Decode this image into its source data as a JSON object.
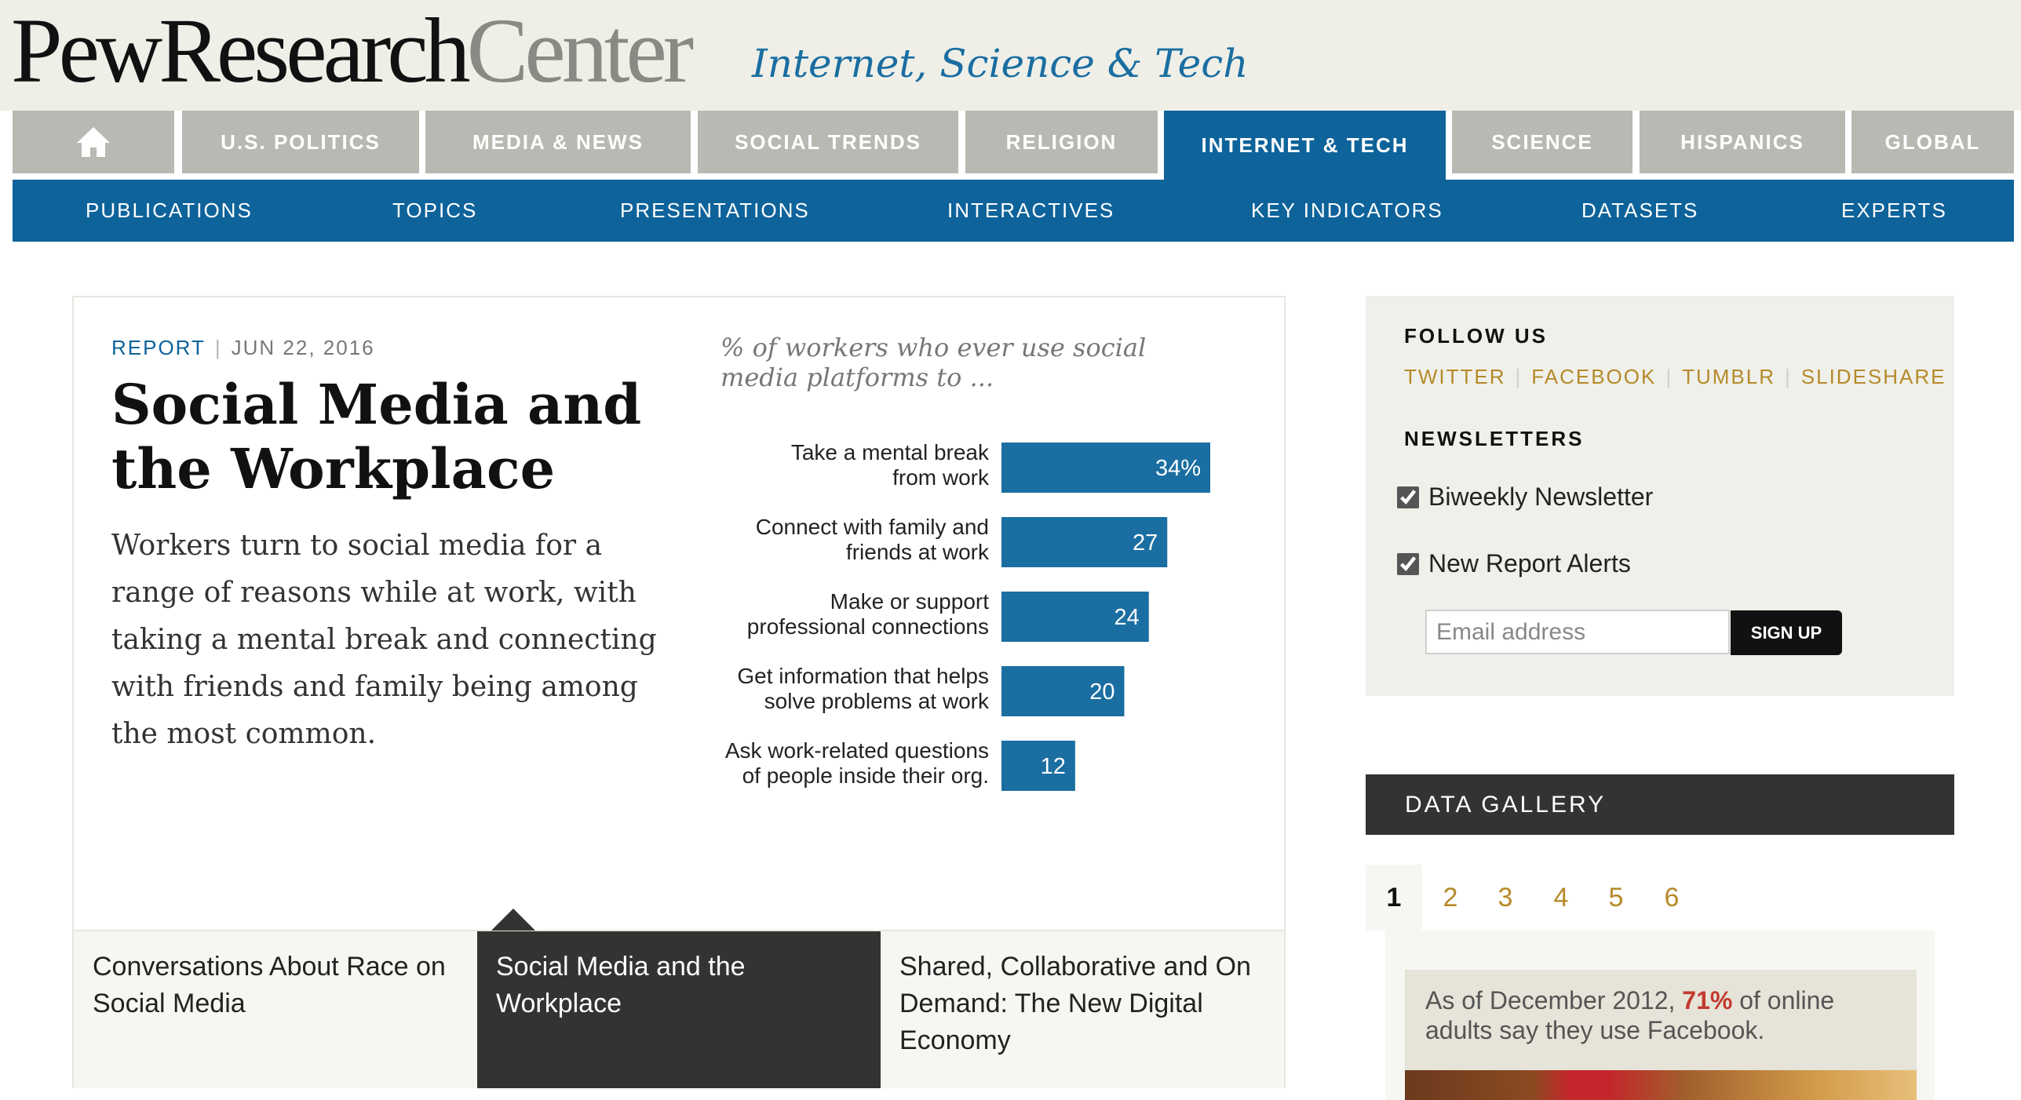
{
  "header": {
    "logo_pew": "PewResearch",
    "logo_center": "Center",
    "site_name": "Internet, Science & Tech"
  },
  "main_nav": {
    "home_icon": "home-icon",
    "items": [
      {
        "label": "U.S. POLITICS"
      },
      {
        "label": "MEDIA & NEWS"
      },
      {
        "label": "SOCIAL TRENDS"
      },
      {
        "label": "RELIGION"
      },
      {
        "label": "INTERNET & TECH",
        "active": true
      },
      {
        "label": "SCIENCE"
      },
      {
        "label": "HISPANICS"
      },
      {
        "label": "GLOBAL"
      }
    ]
  },
  "sub_nav": {
    "items": [
      {
        "label": "PUBLICATIONS"
      },
      {
        "label": "TOPICS"
      },
      {
        "label": "PRESENTATIONS"
      },
      {
        "label": "INTERACTIVES"
      },
      {
        "label": "KEY INDICATORS"
      },
      {
        "label": "DATASETS"
      },
      {
        "label": "EXPERTS"
      }
    ]
  },
  "feature": {
    "type": "REPORT",
    "separator": "|",
    "date": "JUN 22, 2016",
    "title": "Social Media and the Workplace",
    "description": "Workers turn to social media for a range of reasons while at work, with taking a mental break and connecting with friends and family being among the most common.",
    "chart_subtitle": "% of workers who ever use social media platforms to ..."
  },
  "chart_data": {
    "type": "bar",
    "orientation": "horizontal",
    "title": "",
    "subtitle": "% of workers who ever use social media platforms to ...",
    "categories": [
      [
        "Take a mental break",
        "from work"
      ],
      [
        "Connect with family and",
        "friends at work"
      ],
      [
        "Make or support",
        "professional connections"
      ],
      [
        "Get information that helps",
        "solve problems at work"
      ],
      [
        "Ask work-related questions",
        "of people inside their org."
      ]
    ],
    "values": [
      34,
      27,
      24,
      20,
      12
    ],
    "value_labels": [
      "34%",
      "27",
      "24",
      "20",
      "12"
    ],
    "xlim": [
      0,
      34
    ],
    "grid": false,
    "bar_color": "#1a6ea1"
  },
  "related": [
    {
      "label": "Conversations About Race on Social Media"
    },
    {
      "label": "Social Media and the Workplace",
      "active": true
    },
    {
      "label": "Shared, Collaborative and On Demand: The New Digital Economy"
    }
  ],
  "sidebar": {
    "follow_heading": "FOLLOW US",
    "social_links": [
      {
        "label": "TWITTER"
      },
      {
        "label": "FACEBOOK"
      },
      {
        "label": "TUMBLR"
      },
      {
        "label": "SLIDESHARE"
      }
    ],
    "newsletters_heading": "NEWSLETTERS",
    "newsletters": [
      {
        "label": "Biweekly Newsletter",
        "checked": true
      },
      {
        "label": "New Report Alerts",
        "checked": true
      }
    ],
    "email_placeholder": "Email address",
    "signup_label": "SIGN UP"
  },
  "data_gallery": {
    "heading": "DATA GALLERY",
    "pages": [
      "1",
      "2",
      "3",
      "4",
      "5",
      "6"
    ],
    "active_page": "1",
    "card_text_pre": "As of December 2012, ",
    "card_highlight": "71%",
    "card_text_post": " of online adults say they use Facebook."
  },
  "colors": {
    "brand_blue": "#0e639b",
    "tab_gray": "#b9b9b3",
    "link_gold": "#b58a2a",
    "dark_panel": "#333332",
    "highlight_red": "#c33a2f"
  }
}
